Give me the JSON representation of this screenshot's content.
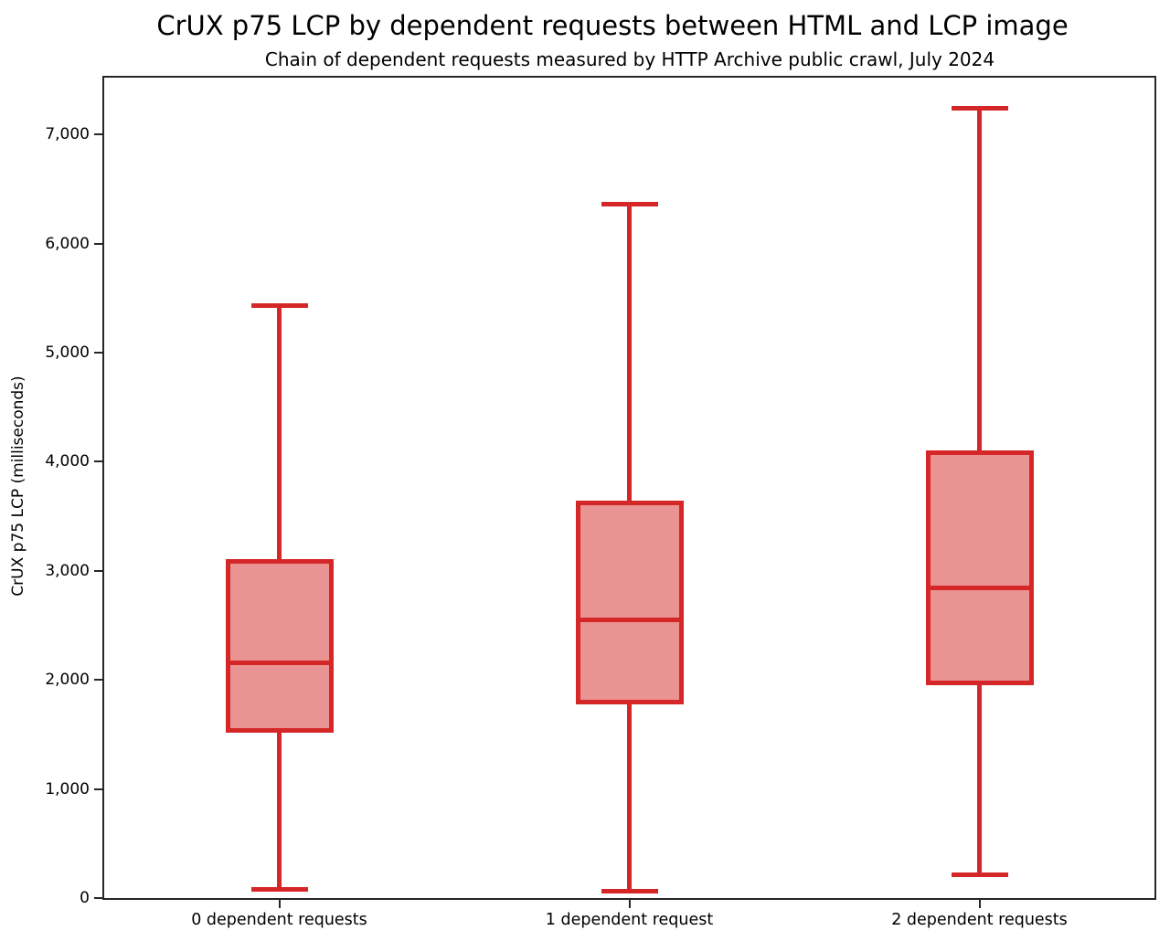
{
  "chart_data": {
    "type": "boxplot",
    "title": "CrUX p75 LCP by dependent requests between HTML and LCP image",
    "subtitle": "Chain of dependent requests measured by HTTP Archive public crawl, July 2024",
    "ylabel": "CrUX p75 LCP (milliseconds)",
    "xlabel": "",
    "categories": [
      "0 dependent requests",
      "1 dependent request",
      "2 dependent requests"
    ],
    "series": [
      {
        "category": "0 dependent requests",
        "min": 80,
        "q1": 1540,
        "median": 2160,
        "q3": 3090,
        "max": 5430
      },
      {
        "category": "1 dependent request",
        "min": 65,
        "q1": 1800,
        "median": 2550,
        "q3": 3620,
        "max": 6360
      },
      {
        "category": "2 dependent requests",
        "min": 215,
        "q1": 1970,
        "median": 2845,
        "q3": 4080,
        "max": 7240
      }
    ],
    "yticks": [
      0,
      1000,
      2000,
      3000,
      4000,
      5000,
      6000,
      7000
    ],
    "ytick_labels": [
      "0",
      "1,000",
      "2,000",
      "3,000",
      "4,000",
      "5,000",
      "6,000",
      "7,000"
    ],
    "ylim": [
      0,
      7520
    ],
    "grid": false,
    "legend": "none",
    "colors": {
      "box_fill": "#ea9393",
      "box_edge": "#d62728",
      "spine": "#262626",
      "text": "#000000"
    }
  }
}
